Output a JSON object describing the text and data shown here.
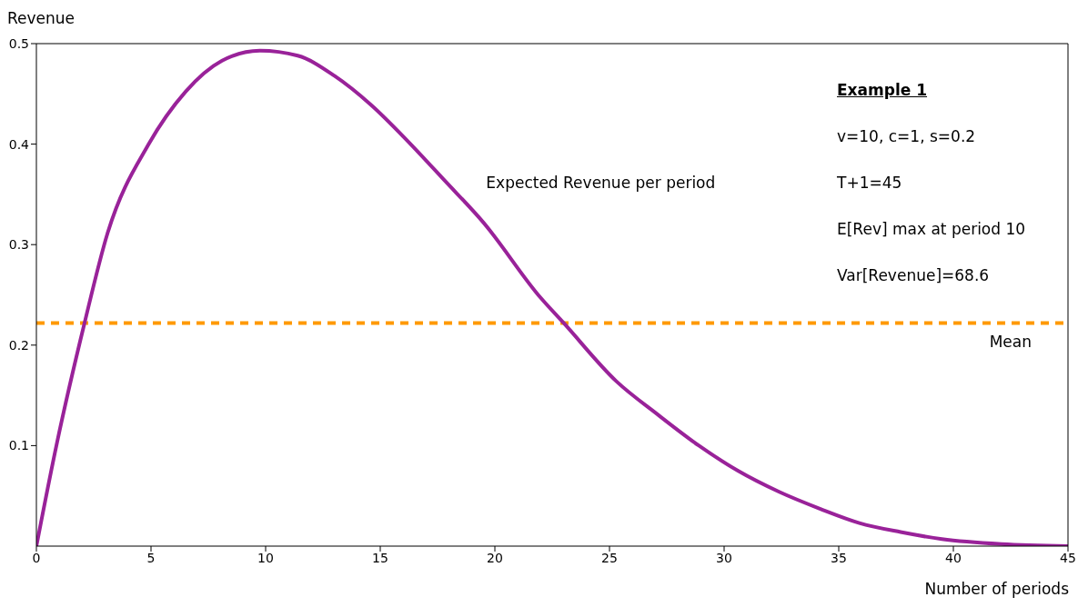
{
  "chart_data": {
    "type": "line",
    "xlabel": "Number of periods",
    "ylabel": "Revenue",
    "xlim": [
      0,
      45
    ],
    "xticks": [
      0,
      5,
      10,
      15,
      20,
      25,
      30,
      35,
      40,
      45
    ],
    "ylim": [
      0,
      0.5
    ],
    "yticks": [
      0.1,
      0.2,
      0.3,
      0.4,
      0.5
    ],
    "x": [
      0,
      0.9,
      2.1,
      3.1,
      4.9,
      6.5,
      8.1,
      9.75,
      11.4,
      13.0,
      14.6,
      16.2,
      17.8,
      19.5,
      22.0,
      23.0,
      25.3,
      27.1,
      28.9,
      30.6,
      32.4,
      34.2,
      35.9,
      37.7,
      39.5,
      42.1,
      45
    ],
    "series": [
      {
        "name": "Expected Revenue per period",
        "color": "#992299",
        "values": [
          0,
          0.103,
          0.222,
          0.311,
          0.4,
          0.452,
          0.483,
          0.493,
          0.488,
          0.468,
          0.439,
          0.403,
          0.364,
          0.322,
          0.247,
          0.222,
          0.164,
          0.131,
          0.1,
          0.075,
          0.054,
          0.037,
          0.023,
          0.014,
          0.007,
          0.002,
          0
        ]
      }
    ],
    "ref_lines": [
      {
        "axis": "y",
        "value": 0.222,
        "label": "Mean",
        "color": "#ff9900",
        "line_style": "dashed"
      }
    ],
    "annotations": [
      "Example 1",
      "v=10, c=1, s=0.2",
      "T+1=45",
      "E[Rev] max at period 10",
      "Var[Revenue]=68.6"
    ],
    "marker": "none",
    "line_style": "solid"
  }
}
